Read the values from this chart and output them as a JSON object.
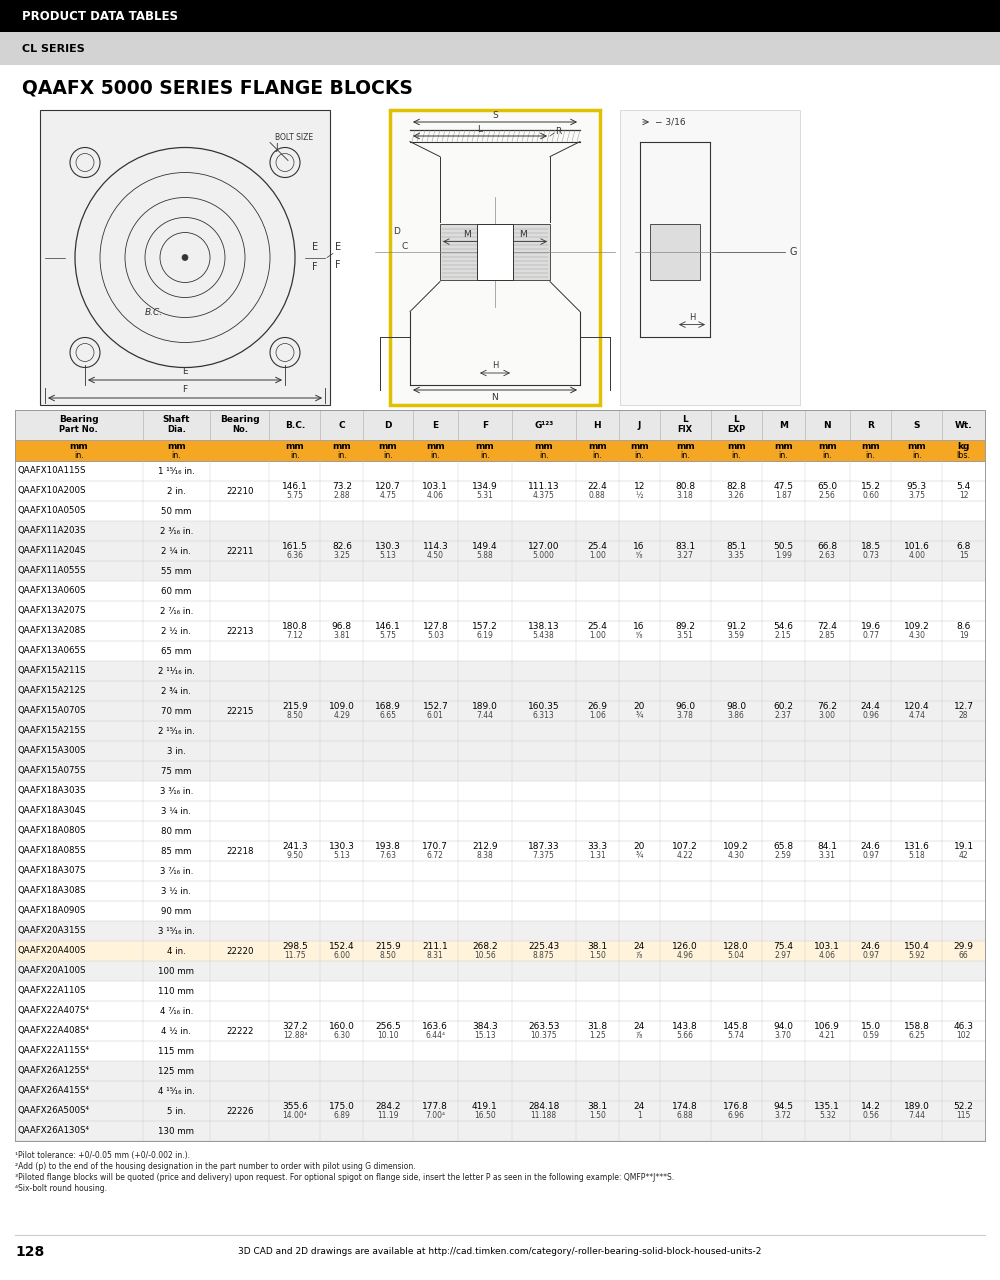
{
  "header_bar_text": "PRODUCT DATA TABLES",
  "subheader_text": "CL SERIES",
  "title_text": "QAAFX 5000 SERIES FLANGE BLOCKS",
  "highlight_part": "QAAFX20A400S",
  "page_number": "128",
  "footer_url": "3D CAD and 2D drawings are available at http://cad.timken.com/category/-roller-bearing-solid-block-housed-units-2",
  "header_bg": "#000000",
  "subheader_bg": "#D3D3D3",
  "table_header_bg": "#E8E8E8",
  "units_row_bg": "#F5A623",
  "alt_row_bg": "#F0F0F0",
  "white_row_bg": "#FFFFFF",
  "highlight_row_bg": "#FFF3DC",
  "grid_color": "#CCCCCC",
  "col_widths_rel": [
    1.55,
    0.82,
    0.72,
    0.62,
    0.52,
    0.6,
    0.55,
    0.65,
    0.78,
    0.52,
    0.5,
    0.62,
    0.62,
    0.52,
    0.55,
    0.5,
    0.62,
    0.52
  ],
  "col_headers_line1": [
    "Bearing",
    "Shaft",
    "Bearing",
    "B.C.",
    "C",
    "D",
    "E",
    "F",
    "G¹²³",
    "H",
    "J",
    "L",
    "L",
    "M",
    "N",
    "R",
    "S",
    "Wt."
  ],
  "col_headers_line2": [
    "Part No.",
    "Dia.",
    "No.",
    "",
    "",
    "",
    "",
    "",
    "",
    "",
    "",
    "FIX",
    "EXP",
    "",
    "",
    "",
    "",
    ""
  ],
  "mm_units": [
    "mm",
    "mm",
    "",
    "mm",
    "mm",
    "mm",
    "mm",
    "mm",
    "mm",
    "mm",
    "mm",
    "mm",
    "mm",
    "mm",
    "mm",
    "mm",
    "mm",
    "kg"
  ],
  "in_units": [
    "in.",
    "in.",
    "",
    "in.",
    "in.",
    "in.",
    "in.",
    "in.",
    "in.",
    "in.",
    "in.",
    "in.",
    "in.",
    "in.",
    "in.",
    "in.",
    "in.",
    "lbs."
  ],
  "rows": [
    {
      "cells": [
        "QAAFX10A115S",
        "1 ¹⁵⁄₁₆ in.",
        "",
        "",
        "",
        "",
        "",
        "",
        "",
        "",
        "",
        "",
        "",
        "",
        "",
        "",
        "",
        ""
      ],
      "group": 0
    },
    {
      "cells": [
        "QAAFX10A200S",
        "2 in.",
        "22210",
        "146.1\n5.75",
        "73.2\n2.88",
        "120.7\n4.75",
        "103.1\n4.06",
        "134.9\n5.31",
        "111.13\n4.375",
        "22.4\n0.88",
        "12\n½",
        "80.8\n3.18",
        "82.8\n3.26",
        "47.5\n1.87",
        "65.0\n2.56",
        "15.2\n0.60",
        "95.3\n3.75",
        "5.4\n12"
      ],
      "group": 0
    },
    {
      "cells": [
        "QAAFX10A050S",
        "50 mm",
        "",
        "",
        "",
        "",
        "",
        "",
        "",
        "",
        "",
        "",
        "",
        "",
        "",
        "",
        "",
        ""
      ],
      "group": 0
    },
    {
      "cells": [
        "QAAFX11A203S",
        "2 ³⁄₁₆ in.",
        "",
        "",
        "",
        "",
        "",
        "",
        "",
        "",
        "",
        "",
        "",
        "",
        "",
        "",
        "",
        ""
      ],
      "group": 1
    },
    {
      "cells": [
        "QAAFX11A204S",
        "2 ¼ in.",
        "22211",
        "161.5\n6.36",
        "82.6\n3.25",
        "130.3\n5.13",
        "114.3\n4.50",
        "149.4\n5.88",
        "127.00\n5.000",
        "25.4\n1.00",
        "16\n⁵⁄₈",
        "83.1\n3.27",
        "85.1\n3.35",
        "50.5\n1.99",
        "66.8\n2.63",
        "18.5\n0.73",
        "101.6\n4.00",
        "6.8\n15"
      ],
      "group": 1
    },
    {
      "cells": [
        "QAAFX11A055S",
        "55 mm",
        "",
        "",
        "",
        "",
        "",
        "",
        "",
        "",
        "",
        "",
        "",
        "",
        "",
        "",
        "",
        ""
      ],
      "group": 1
    },
    {
      "cells": [
        "QAAFX13A060S",
        "60 mm",
        "",
        "",
        "",
        "",
        "",
        "",
        "",
        "",
        "",
        "",
        "",
        "",
        "",
        "",
        "",
        ""
      ],
      "group": 2
    },
    {
      "cells": [
        "QAAFX13A207S",
        "2 ⁷⁄₁₆ in.",
        "",
        "",
        "",
        "",
        "",
        "",
        "",
        "",
        "",
        "",
        "",
        "",
        "",
        "",
        "",
        ""
      ],
      "group": 2
    },
    {
      "cells": [
        "QAAFX13A208S",
        "2 ½ in.",
        "22213",
        "180.8\n7.12",
        "96.8\n3.81",
        "146.1\n5.75",
        "127.8\n5.03",
        "157.2\n6.19",
        "138.13\n5.438",
        "25.4\n1.00",
        "16\n⁵⁄₈",
        "89.2\n3.51",
        "91.2\n3.59",
        "54.6\n2.15",
        "72.4\n2.85",
        "19.6\n0.77",
        "109.2\n4.30",
        "8.6\n19"
      ],
      "group": 2
    },
    {
      "cells": [
        "QAAFX13A065S",
        "65 mm",
        "",
        "",
        "",
        "",
        "",
        "",
        "",
        "",
        "",
        "",
        "",
        "",
        "",
        "",
        "",
        ""
      ],
      "group": 2
    },
    {
      "cells": [
        "QAAFX15A211S",
        "2 ¹¹⁄₁₆ in.",
        "",
        "",
        "",
        "",
        "",
        "",
        "",
        "",
        "",
        "",
        "",
        "",
        "",
        "",
        "",
        ""
      ],
      "group": 3
    },
    {
      "cells": [
        "QAAFX15A212S",
        "2 ¾ in.",
        "",
        "",
        "",
        "",
        "",
        "",
        "",
        "",
        "",
        "",
        "",
        "",
        "",
        "",
        "",
        ""
      ],
      "group": 3
    },
    {
      "cells": [
        "QAAFX15A070S",
        "70 mm",
        "22215",
        "215.9\n8.50",
        "109.0\n4.29",
        "168.9\n6.65",
        "152.7\n6.01",
        "189.0\n7.44",
        "160.35\n6.313",
        "26.9\n1.06",
        "20\n¾",
        "96.0\n3.78",
        "98.0\n3.86",
        "60.2\n2.37",
        "76.2\n3.00",
        "24.4\n0.96",
        "120.4\n4.74",
        "12.7\n28"
      ],
      "group": 3
    },
    {
      "cells": [
        "QAAFX15A215S",
        "2 ¹⁵⁄₁₆ in.",
        "",
        "",
        "",
        "",
        "",
        "",
        "",
        "",
        "",
        "",
        "",
        "",
        "",
        "",
        "",
        ""
      ],
      "group": 3
    },
    {
      "cells": [
        "QAAFX15A300S",
        "3 in.",
        "",
        "",
        "",
        "",
        "",
        "",
        "",
        "",
        "",
        "",
        "",
        "",
        "",
        "",
        "",
        ""
      ],
      "group": 3
    },
    {
      "cells": [
        "QAAFX15A075S",
        "75 mm",
        "",
        "",
        "",
        "",
        "",
        "",
        "",
        "",
        "",
        "",
        "",
        "",
        "",
        "",
        "",
        ""
      ],
      "group": 3
    },
    {
      "cells": [
        "QAAFX18A303S",
        "3 ³⁄₁₆ in.",
        "",
        "",
        "",
        "",
        "",
        "",
        "",
        "",
        "",
        "",
        "",
        "",
        "",
        "",
        "",
        ""
      ],
      "group": 4
    },
    {
      "cells": [
        "QAAFX18A304S",
        "3 ¼ in.",
        "",
        "",
        "",
        "",
        "",
        "",
        "",
        "",
        "",
        "",
        "",
        "",
        "",
        "",
        "",
        ""
      ],
      "group": 4
    },
    {
      "cells": [
        "QAAFX18A080S",
        "80 mm",
        "",
        "",
        "",
        "",
        "",
        "",
        "",
        "",
        "",
        "",
        "",
        "",
        "",
        "",
        "",
        ""
      ],
      "group": 4
    },
    {
      "cells": [
        "QAAFX18A085S",
        "85 mm",
        "22218",
        "241.3\n9.50",
        "130.3\n5.13",
        "193.8\n7.63",
        "170.7\n6.72",
        "212.9\n8.38",
        "187.33\n7.375",
        "33.3\n1.31",
        "20\n¾",
        "107.2\n4.22",
        "109.2\n4.30",
        "65.8\n2.59",
        "84.1\n3.31",
        "24.6\n0.97",
        "131.6\n5.18",
        "19.1\n42"
      ],
      "group": 4
    },
    {
      "cells": [
        "QAAFX18A307S",
        "3 ⁷⁄₁₆ in.",
        "",
        "",
        "",
        "",
        "",
        "",
        "",
        "",
        "",
        "",
        "",
        "",
        "",
        "",
        "",
        ""
      ],
      "group": 4
    },
    {
      "cells": [
        "QAAFX18A308S",
        "3 ½ in.",
        "",
        "",
        "",
        "",
        "",
        "",
        "",
        "",
        "",
        "",
        "",
        "",
        "",
        "",
        "",
        ""
      ],
      "group": 4
    },
    {
      "cells": [
        "QAAFX18A090S",
        "90 mm",
        "",
        "",
        "",
        "",
        "",
        "",
        "",
        "",
        "",
        "",
        "",
        "",
        "",
        "",
        "",
        ""
      ],
      "group": 4
    },
    {
      "cells": [
        "QAAFX20A315S",
        "3 ¹⁵⁄₁₆ in.",
        "",
        "",
        "",
        "",
        "",
        "",
        "",
        "",
        "",
        "",
        "",
        "",
        "",
        "",
        "",
        ""
      ],
      "group": 5
    },
    {
      "cells": [
        "QAAFX20A400S",
        "4 in.",
        "22220",
        "298.5\n11.75",
        "152.4\n6.00",
        "215.9\n8.50",
        "211.1\n8.31",
        "268.2\n10.56",
        "225.43\n8.875",
        "38.1\n1.50",
        "24\n⁷⁄₈",
        "126.0\n4.96",
        "128.0\n5.04",
        "75.4\n2.97",
        "103.1\n4.06",
        "24.6\n0.97",
        "150.4\n5.92",
        "29.9\n66"
      ],
      "group": 5
    },
    {
      "cells": [
        "QAAFX20A100S",
        "100 mm",
        "",
        "",
        "",
        "",
        "",
        "",
        "",
        "",
        "",
        "",
        "",
        "",
        "",
        "",
        "",
        ""
      ],
      "group": 5
    },
    {
      "cells": [
        "QAAFX22A110S",
        "110 mm",
        "",
        "",
        "",
        "",
        "",
        "",
        "",
        "",
        "",
        "",
        "",
        "",
        "",
        "",
        "",
        ""
      ],
      "group": 6
    },
    {
      "cells": [
        "QAAFX22A407S⁴",
        "4 ⁷⁄₁₆ in.",
        "",
        "",
        "",
        "",
        "",
        "",
        "",
        "",
        "",
        "",
        "",
        "",
        "",
        "",
        "",
        ""
      ],
      "group": 6
    },
    {
      "cells": [
        "QAAFX22A408S⁴",
        "4 ½ in.",
        "22222",
        "327.2\n12.88⁴",
        "160.0\n6.30",
        "256.5\n10.10",
        "163.6\n6.44⁴",
        "384.3\n15.13",
        "263.53\n10.375",
        "31.8\n1.25",
        "24\n⁷⁄₈",
        "143.8\n5.66",
        "145.8\n5.74",
        "94.0\n3.70",
        "106.9\n4.21",
        "15.0\n0.59",
        "158.8\n6.25",
        "46.3\n102"
      ],
      "group": 6
    },
    {
      "cells": [
        "QAAFX22A115S⁴",
        "115 mm",
        "",
        "",
        "",
        "",
        "",
        "",
        "",
        "",
        "",
        "",
        "",
        "",
        "",
        "",
        "",
        ""
      ],
      "group": 6
    },
    {
      "cells": [
        "QAAFX26A125S⁴",
        "125 mm",
        "",
        "",
        "",
        "",
        "",
        "",
        "",
        "",
        "",
        "",
        "",
        "",
        "",
        "",
        "",
        ""
      ],
      "group": 7
    },
    {
      "cells": [
        "QAAFX26A415S⁴",
        "4 ¹⁵⁄₁₆ in.",
        "",
        "",
        "",
        "",
        "",
        "",
        "",
        "",
        "",
        "",
        "",
        "",
        "",
        "",
        "",
        ""
      ],
      "group": 7
    },
    {
      "cells": [
        "QAAFX26A500S⁴",
        "5 in.",
        "22226",
        "355.6\n14.00⁴",
        "175.0\n6.89",
        "284.2\n11.19",
        "177.8\n7.00⁴",
        "419.1\n16.50",
        "284.18\n11.188",
        "38.1\n1.50",
        "24\n1",
        "174.8\n6.88",
        "176.8\n6.96",
        "94.5\n3.72",
        "135.1\n5.32",
        "14.2\n0.56",
        "189.0\n7.44",
        "52.2\n115"
      ],
      "group": 7
    },
    {
      "cells": [
        "QAAFX26A130S⁴",
        "130 mm",
        "",
        "",
        "",
        "",
        "",
        "",
        "",
        "",
        "",
        "",
        "",
        "",
        "",
        "",
        "",
        ""
      ],
      "group": 7
    }
  ],
  "footnotes": [
    "¹Pilot tolerance: +0/-0.05 mm (+0/-0.002 in.).",
    "²Add (p) to the end of the housing designation in the part number to order with pilot using G dimension.",
    "³Piloted flange blocks will be quoted (price and delivery) upon request. For optional spigot on flange side, insert the letter P as seen in the following example: QMFP**J***S.",
    "⁴Six-bolt round housing."
  ]
}
